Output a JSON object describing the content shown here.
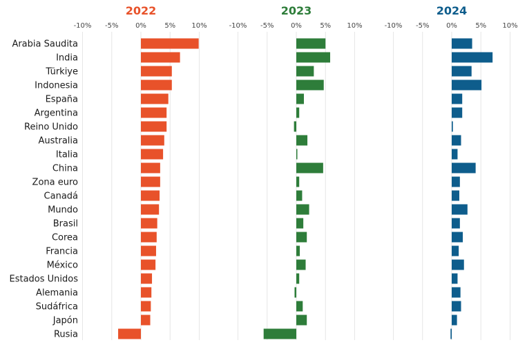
{
  "chart_data": {
    "type": "bar",
    "orientation": "horizontal",
    "categories": [
      "Arabia Saudita",
      "India",
      "Türkiye",
      "Indonesia",
      "España",
      "Argentina",
      "Reino Unido",
      "Australia",
      "Italia",
      "China",
      "Zona euro",
      "Canadá",
      "Mundo",
      "Brasil",
      "Corea",
      "Francia",
      "México",
      "Estados Unidos",
      "Alemania",
      "Sudáfrica",
      "Japón",
      "Rusia"
    ],
    "xlim": [
      -10,
      10
    ],
    "x_ticks": [
      -10,
      -5,
      0,
      5,
      10
    ],
    "x_tick_labels": [
      "-10%",
      "-5%",
      "0%",
      "5%",
      "10%"
    ],
    "grid": true,
    "panels": [
      {
        "name": "2022",
        "color": "#e8522a",
        "values": [
          9.9,
          6.7,
          5.3,
          5.3,
          4.7,
          4.4,
          4.4,
          4.0,
          3.8,
          3.3,
          3.3,
          3.2,
          3.1,
          2.8,
          2.7,
          2.6,
          2.5,
          1.9,
          1.8,
          1.7,
          1.6,
          -3.9
        ]
      },
      {
        "name": "2023",
        "color": "#2e7d3a",
        "values": [
          5.0,
          5.8,
          3.0,
          4.7,
          1.3,
          0.5,
          -0.4,
          1.9,
          0.1,
          4.6,
          0.5,
          1.0,
          2.2,
          1.2,
          1.8,
          0.6,
          1.6,
          0.5,
          -0.3,
          1.1,
          1.8,
          -5.6
        ]
      },
      {
        "name": "2024",
        "color": "#0e5d8c",
        "values": [
          3.5,
          7.0,
          3.4,
          5.1,
          1.8,
          1.8,
          0.2,
          1.6,
          1.0,
          4.1,
          1.4,
          1.3,
          2.7,
          1.4,
          1.9,
          1.2,
          2.1,
          1.0,
          1.5,
          1.6,
          0.9,
          -0.2
        ]
      }
    ]
  }
}
